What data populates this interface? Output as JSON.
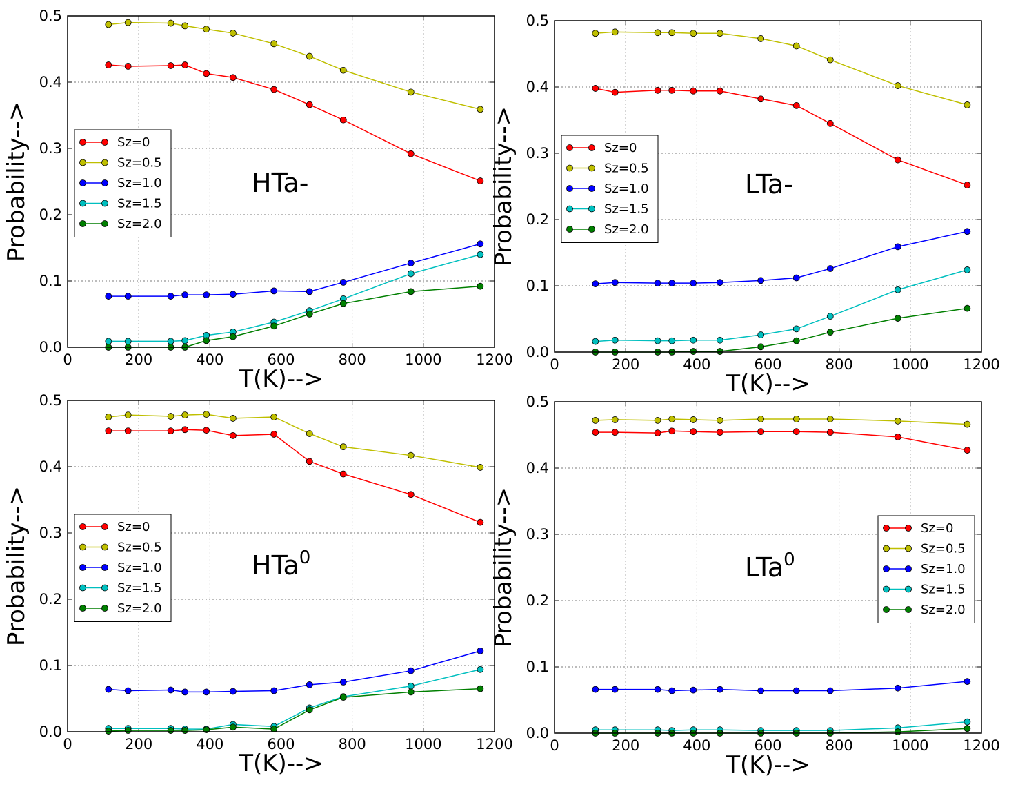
{
  "chart_data": [
    {
      "type": "line",
      "annotation": {
        "text": "HTa-",
        "sup": ""
      },
      "xlabel": "T(K)-->",
      "ylabel": "Probability-->",
      "xlim": [
        0,
        1200
      ],
      "ylim": [
        0,
        0.5
      ],
      "xticks": [
        0,
        200,
        400,
        600,
        800,
        1000,
        1200
      ],
      "yticks": [
        0.0,
        0.1,
        0.2,
        0.3,
        0.4,
        0.5
      ],
      "xtick_labels": [
        "0",
        "200",
        "400",
        "600",
        "800",
        "1000",
        "1200"
      ],
      "ytick_labels": [
        "0.0",
        "0.1",
        "0.2",
        "0.3",
        "0.4",
        "0.5"
      ],
      "grid": true,
      "legend_position": "center-left",
      "x": [
        115,
        170,
        290,
        330,
        390,
        465,
        580,
        680,
        775,
        965,
        1160
      ],
      "series": [
        {
          "name": "Sz=0",
          "color": "#ff0000",
          "values": [
            0.426,
            0.424,
            0.425,
            0.426,
            0.413,
            0.407,
            0.389,
            0.366,
            0.343,
            0.292,
            0.251
          ]
        },
        {
          "name": "Sz=0.5",
          "color": "#bfbf00",
          "values": [
            0.487,
            0.49,
            0.489,
            0.485,
            0.48,
            0.474,
            0.458,
            0.439,
            0.418,
            0.385,
            0.359
          ]
        },
        {
          "name": "Sz=1.0",
          "color": "#0000ff",
          "values": [
            0.077,
            0.077,
            0.077,
            0.079,
            0.079,
            0.08,
            0.085,
            0.084,
            0.098,
            0.127,
            0.156
          ]
        },
        {
          "name": "Sz=1.5",
          "color": "#00bfbf",
          "values": [
            0.009,
            0.009,
            0.009,
            0.01,
            0.018,
            0.023,
            0.038,
            0.055,
            0.073,
            0.111,
            0.14
          ]
        },
        {
          "name": "Sz=2.0",
          "color": "#007f00",
          "values": [
            0.0,
            0.0,
            0.0,
            0.0,
            0.01,
            0.016,
            0.032,
            0.05,
            0.066,
            0.084,
            0.092
          ]
        }
      ]
    },
    {
      "type": "line",
      "annotation": {
        "text": "LTa-",
        "sup": ""
      },
      "xlabel": "T(K)-->",
      "ylabel": "Probability-->",
      "xlim": [
        0,
        1200
      ],
      "ylim": [
        0,
        0.5
      ],
      "xticks": [
        0,
        200,
        400,
        600,
        800,
        1000,
        1200
      ],
      "yticks": [
        0.0,
        0.1,
        0.2,
        0.3,
        0.4,
        0.5
      ],
      "xtick_labels": [
        "0",
        "200",
        "400",
        "600",
        "800",
        "1000",
        "1200"
      ],
      "ytick_labels": [
        "0.0",
        "0.1",
        "0.2",
        "0.3",
        "0.4",
        "0.5"
      ],
      "grid": true,
      "legend_position": "center-left",
      "x": [
        115,
        170,
        290,
        330,
        390,
        465,
        580,
        680,
        775,
        965,
        1160
      ],
      "series": [
        {
          "name": "Sz=0",
          "color": "#ff0000",
          "values": [
            0.398,
            0.392,
            0.395,
            0.395,
            0.394,
            0.394,
            0.382,
            0.372,
            0.345,
            0.29,
            0.252
          ]
        },
        {
          "name": "Sz=0.5",
          "color": "#bfbf00",
          "values": [
            0.481,
            0.483,
            0.482,
            0.482,
            0.481,
            0.481,
            0.473,
            0.462,
            0.441,
            0.402,
            0.373
          ]
        },
        {
          "name": "Sz=1.0",
          "color": "#0000ff",
          "values": [
            0.103,
            0.105,
            0.104,
            0.104,
            0.104,
            0.105,
            0.108,
            0.112,
            0.126,
            0.159,
            0.182
          ]
        },
        {
          "name": "Sz=1.5",
          "color": "#00bfbf",
          "values": [
            0.016,
            0.018,
            0.017,
            0.017,
            0.018,
            0.018,
            0.026,
            0.035,
            0.054,
            0.094,
            0.124
          ]
        },
        {
          "name": "Sz=2.0",
          "color": "#007f00",
          "values": [
            0.0,
            0.0,
            0.0,
            0.0,
            0.001,
            0.001,
            0.008,
            0.017,
            0.03,
            0.051,
            0.066
          ]
        }
      ]
    },
    {
      "type": "line",
      "annotation": {
        "text": "HTa",
        "sup": "0"
      },
      "xlabel": "T(K)-->",
      "ylabel": "Probability-->",
      "xlim": [
        0,
        1200
      ],
      "ylim": [
        0,
        0.5
      ],
      "xticks": [
        0,
        200,
        400,
        600,
        800,
        1000,
        1200
      ],
      "yticks": [
        0.0,
        0.1,
        0.2,
        0.3,
        0.4,
        0.5
      ],
      "xtick_labels": [
        "0",
        "200",
        "400",
        "600",
        "800",
        "1000",
        "1200"
      ],
      "ytick_labels": [
        "0.0",
        "0.1",
        "0.2",
        "0.3",
        "0.4",
        "0.5"
      ],
      "grid": true,
      "legend_position": "center-left",
      "x": [
        115,
        170,
        290,
        330,
        390,
        465,
        580,
        680,
        775,
        965,
        1160
      ],
      "series": [
        {
          "name": "Sz=0",
          "color": "#ff0000",
          "values": [
            0.454,
            0.454,
            0.454,
            0.456,
            0.455,
            0.447,
            0.449,
            0.408,
            0.389,
            0.358,
            0.316
          ]
        },
        {
          "name": "Sz=0.5",
          "color": "#bfbf00",
          "values": [
            0.475,
            0.478,
            0.476,
            0.478,
            0.479,
            0.473,
            0.475,
            0.45,
            0.43,
            0.417,
            0.399
          ]
        },
        {
          "name": "Sz=1.0",
          "color": "#0000ff",
          "values": [
            0.064,
            0.062,
            0.063,
            0.06,
            0.06,
            0.061,
            0.062,
            0.071,
            0.075,
            0.092,
            0.122
          ]
        },
        {
          "name": "Sz=1.5",
          "color": "#00bfbf",
          "values": [
            0.005,
            0.005,
            0.005,
            0.004,
            0.004,
            0.011,
            0.008,
            0.036,
            0.053,
            0.069,
            0.094
          ]
        },
        {
          "name": "Sz=2.0",
          "color": "#007f00",
          "values": [
            0.001,
            0.002,
            0.002,
            0.002,
            0.003,
            0.007,
            0.004,
            0.033,
            0.052,
            0.06,
            0.065
          ]
        }
      ]
    },
    {
      "type": "line",
      "annotation": {
        "text": "LTa",
        "sup": "0"
      },
      "xlabel": "T(K)-->",
      "ylabel": "Probability-->",
      "xlim": [
        0,
        1200
      ],
      "ylim": [
        0,
        0.5
      ],
      "xticks": [
        0,
        200,
        400,
        600,
        800,
        1000,
        1200
      ],
      "yticks": [
        0.0,
        0.1,
        0.2,
        0.3,
        0.4,
        0.5
      ],
      "xtick_labels": [
        "0",
        "200",
        "400",
        "600",
        "800",
        "1000",
        "1200"
      ],
      "ytick_labels": [
        "0.0",
        "0.1",
        "0.2",
        "0.3",
        "0.4",
        "0.5"
      ],
      "grid": true,
      "legend_position": "center-right",
      "x": [
        115,
        170,
        290,
        330,
        390,
        465,
        580,
        680,
        775,
        965,
        1160
      ],
      "series": [
        {
          "name": "Sz=0",
          "color": "#ff0000",
          "values": [
            0.454,
            0.454,
            0.453,
            0.456,
            0.455,
            0.454,
            0.455,
            0.455,
            0.454,
            0.447,
            0.427
          ]
        },
        {
          "name": "Sz=0.5",
          "color": "#bfbf00",
          "values": [
            0.472,
            0.473,
            0.472,
            0.474,
            0.473,
            0.472,
            0.474,
            0.474,
            0.474,
            0.471,
            0.466
          ]
        },
        {
          "name": "Sz=1.0",
          "color": "#0000ff",
          "values": [
            0.066,
            0.066,
            0.066,
            0.064,
            0.065,
            0.066,
            0.064,
            0.064,
            0.064,
            0.068,
            0.078
          ]
        },
        {
          "name": "Sz=1.5",
          "color": "#00bfbf",
          "values": [
            0.005,
            0.005,
            0.005,
            0.004,
            0.005,
            0.005,
            0.004,
            0.004,
            0.004,
            0.008,
            0.017
          ]
        },
        {
          "name": "Sz=2.0",
          "color": "#007f00",
          "values": [
            0.0,
            0.0,
            0.0,
            0.0,
            0.0,
            0.0,
            0.0,
            0.0,
            0.0,
            0.002,
            0.007
          ]
        }
      ]
    }
  ]
}
